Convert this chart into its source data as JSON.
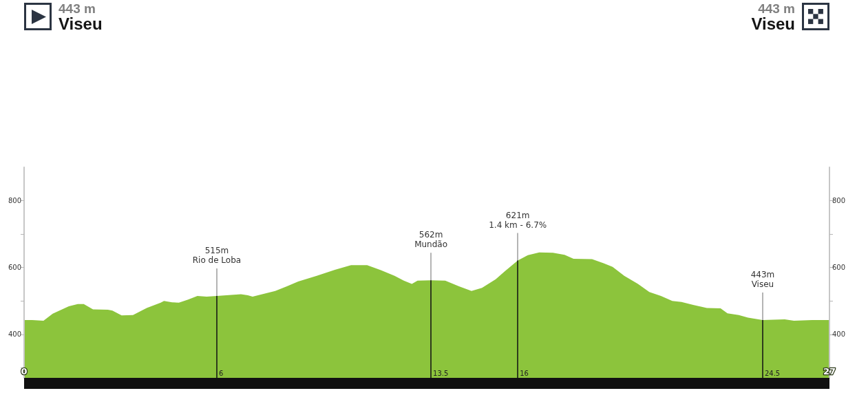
{
  "chart_data": {
    "type": "area",
    "annotations": [
      "443 m",
      "Viseu",
      "443 m",
      "Viseu",
      {
        "text": "6",
        "x": 6.46,
        "y": 270
      },
      {
        "text": "13.5",
        "x": 13.64,
        "y": 270
      },
      {
        "text": "16",
        "x": 16.55,
        "y": 270
      },
      {
        "text": "24.5",
        "x": 24.76,
        "y": 270
      }
    ],
    "x": [
      0,
      0.27,
      0.65,
      0.96,
      1.5,
      1.8,
      2.0,
      2.31,
      2.81,
      2.96,
      3.27,
      3.65,
      4.11,
      4.58,
      4.69,
      4.96,
      5.19,
      5.5,
      5.81,
      6.12,
      6.46,
      7.27,
      7.5,
      7.66,
      7.89,
      8.42,
      8.81,
      9.19,
      9.81,
      10.42,
      10.96,
      11.5,
      11.96,
      12.42,
      12.73,
      13.0,
      13.19,
      13.64,
      14.12,
      14.58,
      15.0,
      15.35,
      15.81,
      16.12,
      16.55,
      16.89,
      17.27,
      17.73,
      18.12,
      18.42,
      19.04,
      19.43,
      19.73,
      20.12,
      20.58,
      20.96,
      21.35,
      21.73,
      22.04,
      22.43,
      22.89,
      23.35,
      23.58,
      23.96,
      24.27,
      24.76,
      25.5,
      25.81,
      26.42,
      27
    ],
    "values": [
      443,
      443,
      441,
      462,
      484,
      491,
      491,
      475,
      474,
      471,
      457,
      458,
      479,
      495,
      500,
      496,
      495,
      504,
      515,
      513,
      515,
      520,
      517,
      513,
      518,
      530,
      544,
      558,
      575,
      593,
      607,
      607,
      592,
      575,
      561,
      551,
      561,
      562,
      561,
      544,
      530,
      539,
      565,
      589,
      621,
      637,
      645,
      644,
      638,
      626,
      625,
      613,
      602,
      575,
      551,
      527,
      515,
      500,
      497,
      488,
      479,
      478,
      463,
      458,
      450,
      443,
      445,
      441,
      443,
      443
    ],
    "color": "#8cc43c",
    "marker": "none",
    "xlim": [
      0,
      27
    ],
    "xticks": [
      0,
      27
    ],
    "ylim": [
      270,
      900
    ],
    "yticks": [
      {
        "value": 300,
        "label": null
      },
      400,
      {
        "value": 500,
        "label": null
      },
      600,
      {
        "value": 700,
        "label": null
      },
      800
    ],
    "y2lim": [
      270,
      900
    ],
    "y2ticks": [
      {
        "value": 300,
        "label": null
      },
      400,
      {
        "value": 500,
        "label": null
      },
      600,
      {
        "value": 700,
        "label": null
      },
      800
    ],
    "ref_lines": [
      {
        "axis": "x",
        "value": 6.46,
        "label": "515m\nRio de Loba"
      },
      {
        "axis": "x",
        "value": 13.64,
        "label": "562m\nMundão"
      },
      {
        "axis": "x",
        "value": 16.55,
        "label": "621m\n1.4 km - 6.7%"
      },
      {
        "axis": "x",
        "value": 24.76,
        "label": "443m\nViseu"
      }
    ]
  }
}
